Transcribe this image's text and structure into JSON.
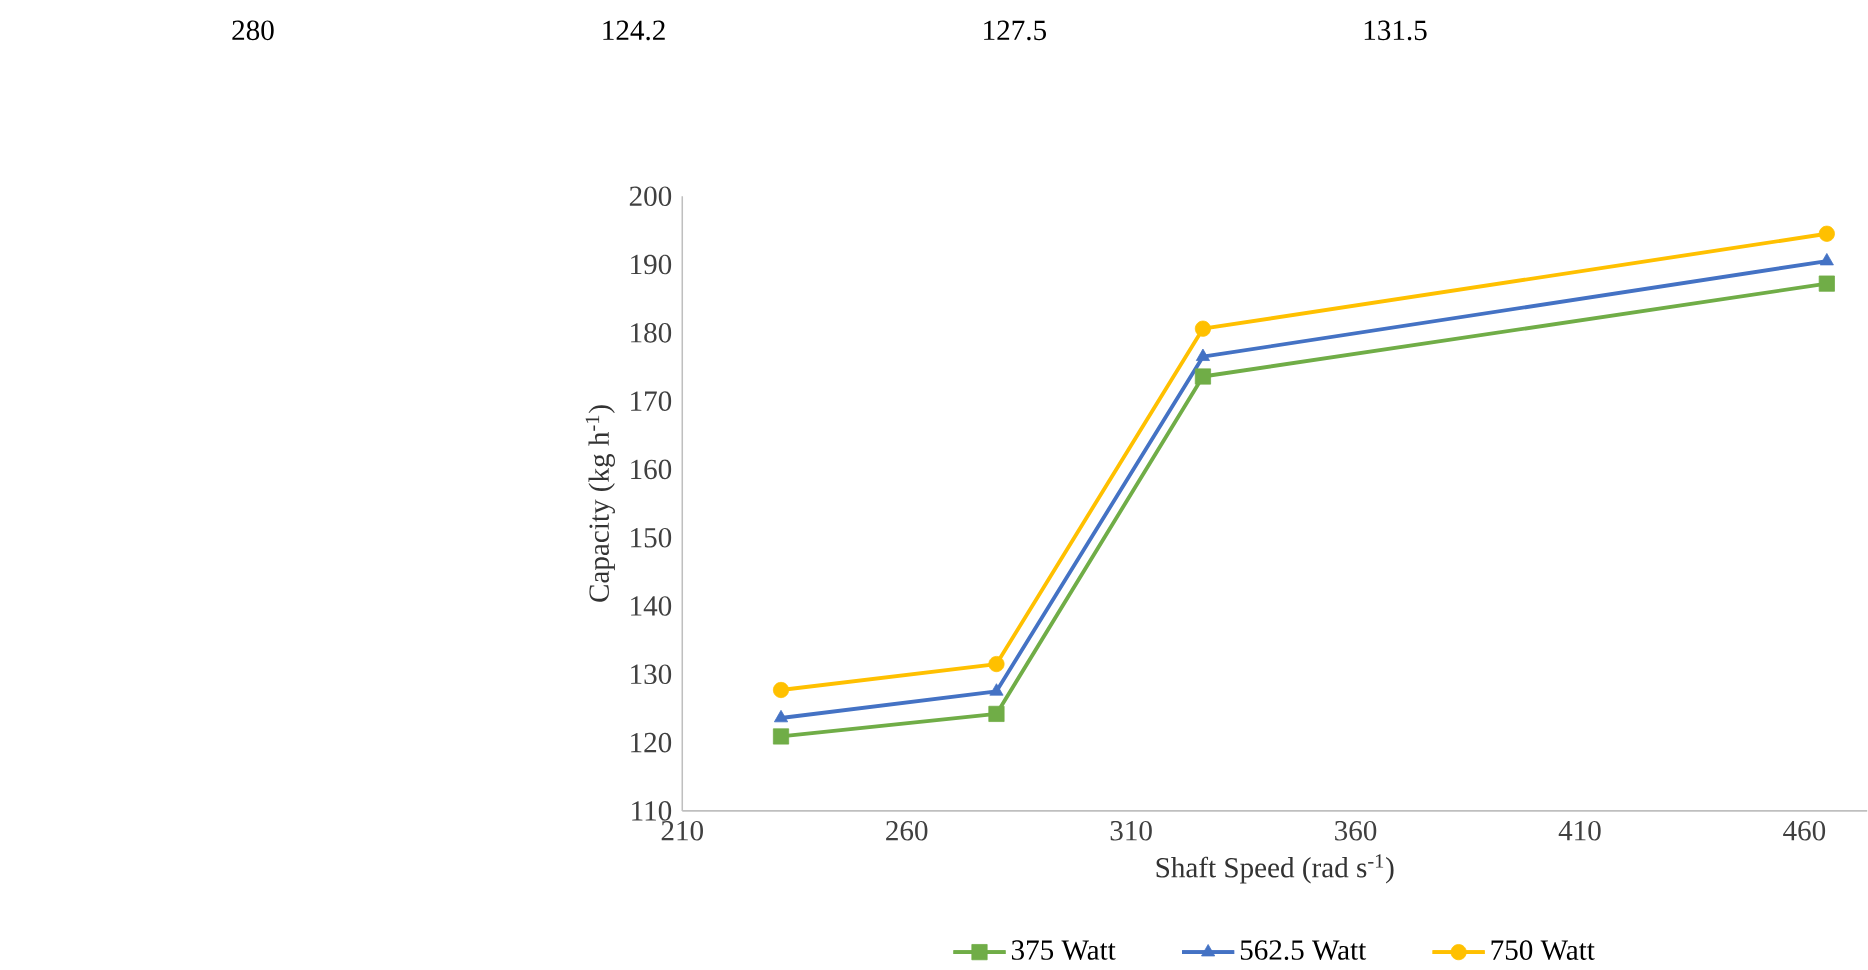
{
  "chart_data": {
    "type": "line",
    "xlabel": "Shaft Speed (rad s$^{-1}$)",
    "ylabel": "Capacity (kg h$^{-1}$)",
    "annotations": [
      "280",
      "124.2",
      "127.5",
      "131.5"
    ],
    "x": [
      232,
      280,
      326,
      465
    ],
    "series": [
      {
        "name": "375 Watt",
        "color": "#70ad47",
        "marker": "square",
        "values": [
          120.9,
          124.2,
          173.6,
          187.2
        ]
      },
      {
        "name": "562.5 Watt",
        "color": "#4472c4",
        "marker": "triangle",
        "values": [
          123.6,
          127.5,
          176.5,
          190.5
        ]
      },
      {
        "name": "750 Watt",
        "color": "#ffc000",
        "marker": "circle",
        "values": [
          127.7,
          131.5,
          180.6,
          194.5
        ]
      }
    ],
    "xlim": [
      210,
      474
    ],
    "xticks": [
      210,
      260,
      310,
      360,
      410,
      460
    ],
    "ylim": [
      110,
      200
    ],
    "yticks": [
      110,
      120,
      130,
      140,
      150,
      160,
      170,
      180,
      190,
      200
    ],
    "grid": false,
    "legend": "bottom",
    "line_style": "solid"
  }
}
